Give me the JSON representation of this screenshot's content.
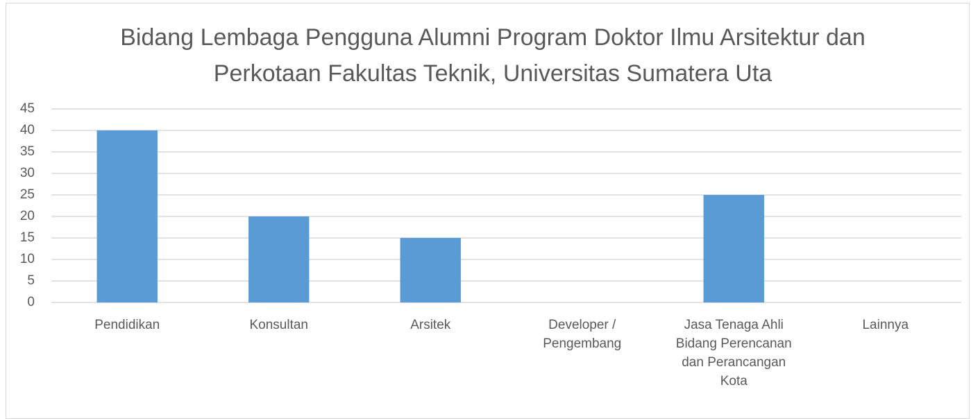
{
  "chart_data": {
    "type": "bar",
    "title": "Bidang Lembaga Pengguna Alumni Program Doktor Ilmu Arsitektur dan Perkotaan Fakultas Teknik, Universitas Sumatera Uta",
    "categories": [
      "Pendidikan",
      "Konsultan",
      "Arsitek",
      "Developer / Pengembang",
      "Jasa Tenaga Ahli Bidang Perencanan dan Perancangan Kota",
      "Lainnya"
    ],
    "values": [
      40,
      20,
      15,
      0,
      25,
      0
    ],
    "color": "#5b9bd5",
    "ylim": [
      0,
      45
    ],
    "yticks": [
      0,
      5,
      10,
      15,
      20,
      25,
      30,
      35,
      40,
      45
    ],
    "grid": true
  }
}
